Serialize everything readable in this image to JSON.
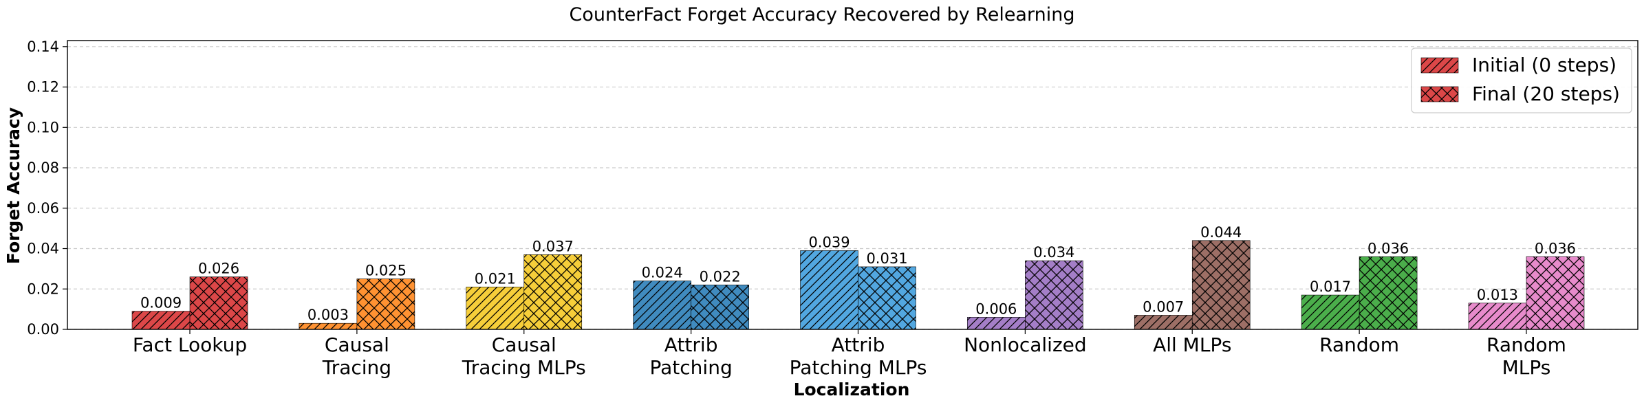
{
  "chart_data": {
    "type": "bar",
    "title": "CounterFact Forget Accuracy Recovered by Relearning",
    "xlabel": "Localization",
    "ylabel": "Forget Accuracy",
    "ylim": [
      0,
      0.143
    ],
    "yticks": [
      "0.00",
      "0.02",
      "0.04",
      "0.06",
      "0.08",
      "0.10",
      "0.12",
      "0.14"
    ],
    "ytick_values": [
      0,
      0.02,
      0.04,
      0.06,
      0.08,
      0.1,
      0.12,
      0.14
    ],
    "grid": true,
    "legend_position": "top-right",
    "categories": [
      [
        "Fact Lookup"
      ],
      [
        "Causal",
        "Tracing"
      ],
      [
        "Causal",
        "Tracing MLPs"
      ],
      [
        "Attrib",
        "Patching"
      ],
      [
        "Attrib",
        "Patching MLPs"
      ],
      [
        "Nonlocalized"
      ],
      [
        "All MLPs"
      ],
      [
        "Random"
      ],
      [
        "Random",
        "MLPs"
      ]
    ],
    "colors": [
      "#d62728",
      "#ff7f0e",
      "#f5c518",
      "#1f77b4",
      "#3498db",
      "#9467bd",
      "#8c564b",
      "#2ca02c",
      "#e377c2"
    ],
    "series": [
      {
        "name": "Initial (0 steps)",
        "hatch": "diagonal",
        "values": [
          0.009,
          0.003,
          0.021,
          0.024,
          0.039,
          0.006,
          0.007,
          0.017,
          0.013
        ],
        "labels": [
          "0.009",
          "0.003",
          "0.021",
          "0.024",
          "0.039",
          "0.006",
          "0.007",
          "0.017",
          "0.013"
        ]
      },
      {
        "name": "Final (20 steps)",
        "hatch": "crosshatch",
        "values": [
          0.026,
          0.025,
          0.037,
          0.022,
          0.031,
          0.034,
          0.044,
          0.036,
          0.036
        ],
        "labels": [
          "0.026",
          "0.025",
          "0.037",
          "0.022",
          "0.031",
          "0.034",
          "0.044",
          "0.036",
          "0.036"
        ]
      }
    ],
    "legend_color": "#d62728"
  }
}
